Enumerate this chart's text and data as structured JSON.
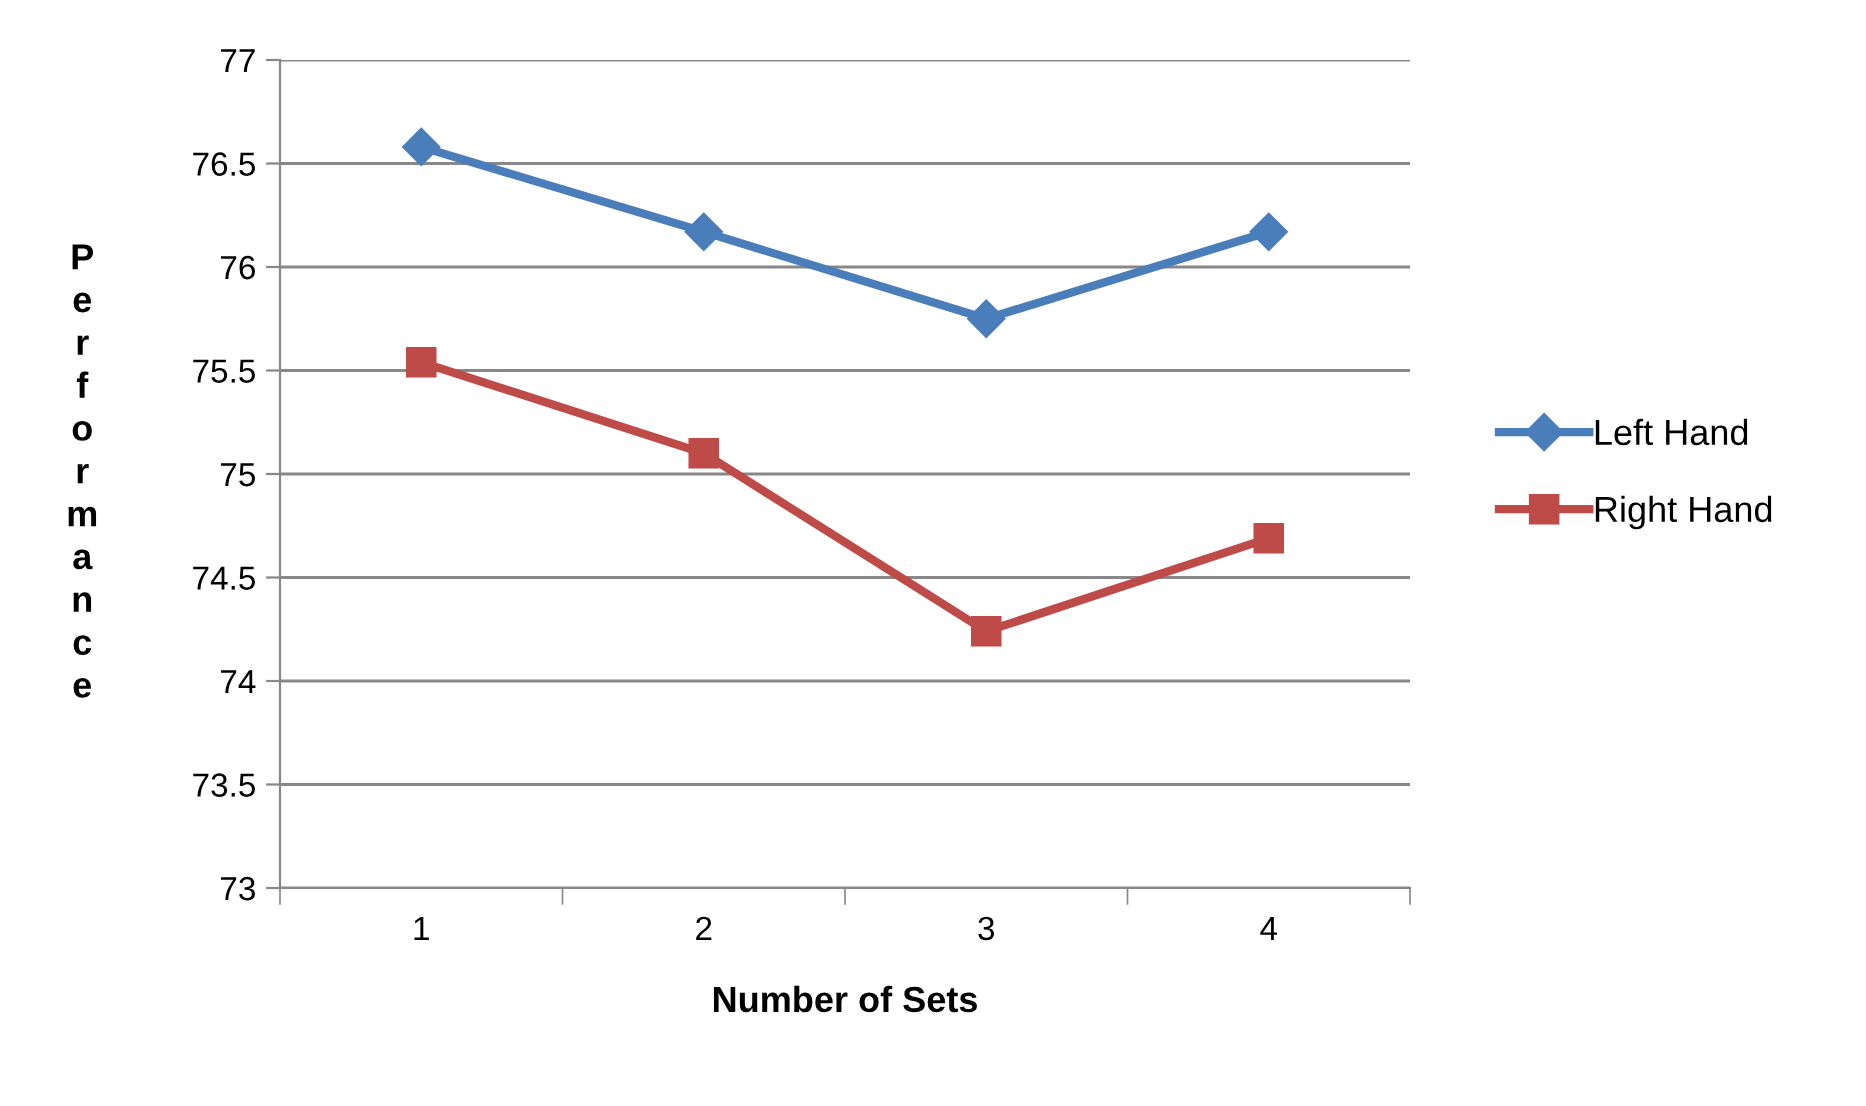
{
  "chart_data": {
    "type": "line",
    "xlabel": "Number of Sets",
    "ylabel": "Performance",
    "categories": [
      "1",
      "2",
      "3",
      "4"
    ],
    "series": [
      {
        "name": "Left Hand",
        "color": "#4a7ebb",
        "marker": "diamond",
        "values": [
          76.58,
          76.17,
          75.75,
          76.17
        ]
      },
      {
        "name": "Right Hand",
        "color": "#be4b48",
        "marker": "square",
        "values": [
          75.54,
          75.1,
          74.24,
          74.69
        ]
      }
    ],
    "ylim": [
      73,
      77
    ],
    "yticks": [
      73,
      73.5,
      74,
      74.5,
      75,
      75.5,
      76,
      76.5,
      77
    ],
    "grid": "y",
    "legend": "right",
    "line_style": "solid"
  }
}
